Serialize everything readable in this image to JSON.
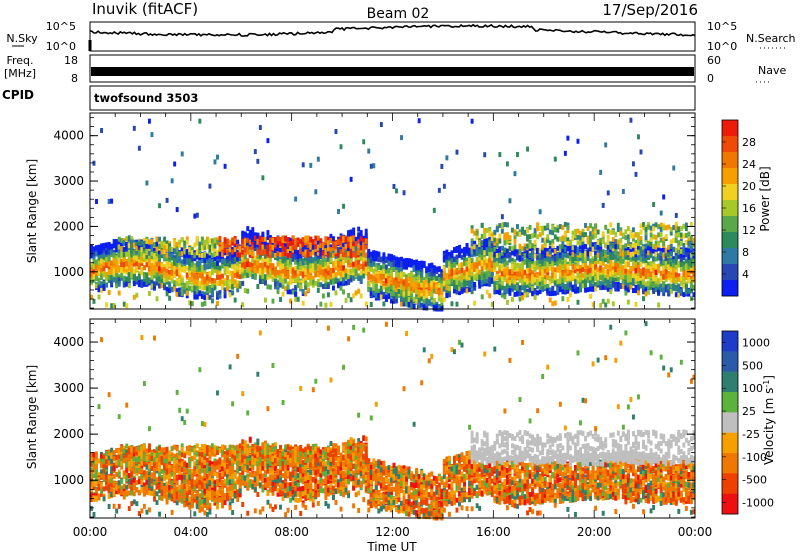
{
  "header": {
    "station": "Inuvik (fitACF)",
    "beam": "Beam 02",
    "date": "17/Sep/2016"
  },
  "left_labels": {
    "nsky": "N.Sky",
    "freq_line1": "Freq.",
    "freq_line2": "[MHz]",
    "cpid": "CPID"
  },
  "right_labels": {
    "nsearch": "N.Search",
    "nave": "Nave"
  },
  "cpid_program": "twofsound 3503",
  "chart_data": [
    {
      "panel": "noise",
      "type": "line",
      "ylabels_left": [
        "10^5",
        "10^0"
      ],
      "ylabels_right": [
        "10^5",
        "10^0"
      ],
      "ylim_log": [
        0,
        5
      ]
    },
    {
      "panel": "frequency",
      "type": "line",
      "ylabels_left": [
        "18",
        "8"
      ],
      "ylabels_right": [
        "60",
        "0"
      ],
      "freq_range": [
        8,
        18
      ]
    },
    {
      "panel": "power",
      "type": "heatmap",
      "ylabel": "Slant Range [km]",
      "yticks": [
        1000,
        2000,
        3000,
        4000
      ],
      "ylim": [
        180,
        4500
      ],
      "colorbar_label": "Power [dB]",
      "colorbar_ticks": [
        "4",
        "8",
        "12",
        "16",
        "20",
        "24",
        "28"
      ],
      "colorbar_colors": [
        "#0b1ff0",
        "#2747b5",
        "#2e7aa3",
        "#2e8a5a",
        "#5aa84a",
        "#a8c82a",
        "#f0d020",
        "#f5a000",
        "#f07800",
        "#ee4a08",
        "#ee1a0a"
      ]
    },
    {
      "panel": "velocity",
      "type": "heatmap",
      "ylabel": "Slant Range [km]",
      "yticks": [
        1000,
        2000,
        3000,
        4000
      ],
      "ylim": [
        180,
        4500
      ],
      "colorbar_label": "Velocity [m s-1]",
      "colorbar_ticks": [
        "1000",
        "500",
        "100",
        "25",
        "-25",
        "-100",
        "-500",
        "-1000"
      ],
      "colorbar_colors": [
        "#1e3cc8",
        "#2a5aa8",
        "#2e7f6e",
        "#5bb23c",
        "#bfbfbf",
        "#f5a000",
        "#f07800",
        "#ee4000",
        "#ee1010"
      ]
    }
  ],
  "xaxis": {
    "label": "Time UT",
    "ticks": [
      "00:00",
      "04:00",
      "08:00",
      "12:00",
      "16:00",
      "20:00",
      "00:00"
    ]
  }
}
